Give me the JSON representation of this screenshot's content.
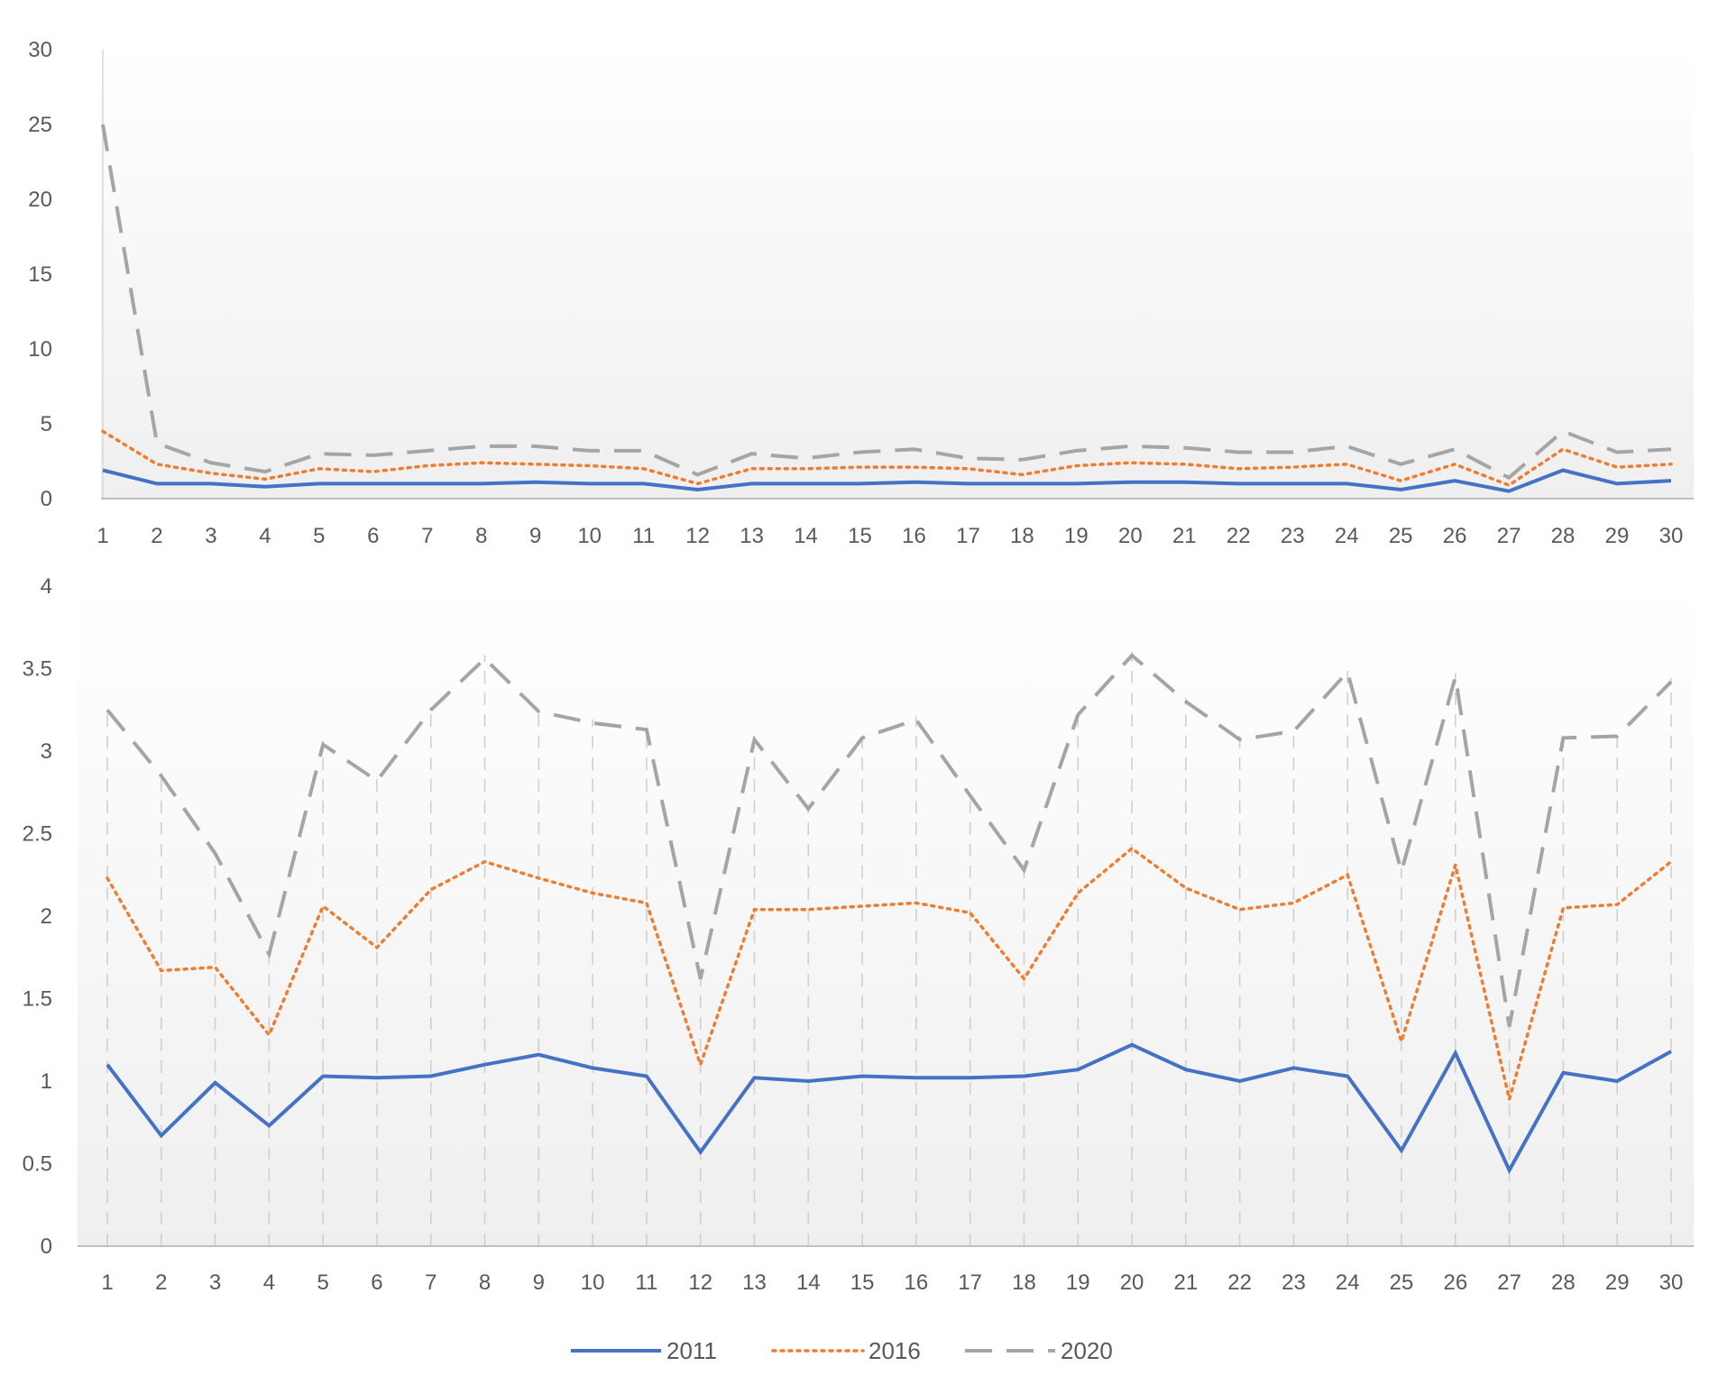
{
  "chart_data": [
    {
      "type": "line",
      "title": "",
      "xlabel": "",
      "ylabel": "",
      "categories": [
        "1",
        "2",
        "3",
        "4",
        "5",
        "6",
        "7",
        "8",
        "9",
        "10",
        "11",
        "12",
        "13",
        "14",
        "15",
        "16",
        "17",
        "18",
        "19",
        "20",
        "21",
        "22",
        "23",
        "24",
        "25",
        "26",
        "27",
        "28",
        "29",
        "30"
      ],
      "yticks": [
        "0",
        "5",
        "10",
        "15",
        "20",
        "25",
        "30"
      ],
      "ylim": [
        0,
        30
      ],
      "grid": false,
      "series": [
        {
          "name": "2011",
          "color": "#4472C4",
          "style": "solid",
          "values": [
            1.9,
            1.0,
            1.0,
            0.8,
            1.0,
            1.0,
            1.0,
            1.0,
            1.1,
            1.0,
            1.0,
            0.6,
            1.0,
            1.0,
            1.0,
            1.1,
            1.0,
            1.0,
            1.0,
            1.1,
            1.1,
            1.0,
            1.0,
            1.0,
            0.6,
            1.2,
            0.5,
            1.9,
            1.0,
            1.2
          ]
        },
        {
          "name": "2016",
          "color": "#ED7D31",
          "style": "dotted",
          "values": [
            4.5,
            2.3,
            1.7,
            1.3,
            2.0,
            1.8,
            2.2,
            2.4,
            2.3,
            2.2,
            2.0,
            1.0,
            2.0,
            2.0,
            2.1,
            2.1,
            2.0,
            1.6,
            2.2,
            2.4,
            2.3,
            2.0,
            2.1,
            2.3,
            1.2,
            2.3,
            0.9,
            3.3,
            2.1,
            2.3
          ]
        },
        {
          "name": "2020",
          "color": "#A5A5A5",
          "style": "dashed",
          "values": [
            25.0,
            3.7,
            2.4,
            1.8,
            3.0,
            2.9,
            3.2,
            3.5,
            3.5,
            3.2,
            3.2,
            1.6,
            3.0,
            2.7,
            3.1,
            3.3,
            2.7,
            2.6,
            3.2,
            3.5,
            3.4,
            3.1,
            3.1,
            3.5,
            2.3,
            3.3,
            1.4,
            4.5,
            3.1,
            3.3
          ]
        }
      ]
    },
    {
      "type": "line",
      "title": "",
      "xlabel": "",
      "ylabel": "",
      "categories": [
        "1",
        "2",
        "3",
        "4",
        "5",
        "6",
        "7",
        "8",
        "9",
        "10",
        "11",
        "12",
        "13",
        "14",
        "15",
        "16",
        "17",
        "18",
        "19",
        "20",
        "21",
        "22",
        "23",
        "24",
        "25",
        "26",
        "27",
        "28",
        "29",
        "30"
      ],
      "yticks": [
        "0",
        "0.5",
        "1",
        "1.5",
        "2",
        "2.5",
        "3",
        "3.5",
        "4"
      ],
      "ylim": [
        0,
        4
      ],
      "grid": true,
      "series": [
        {
          "name": "2011",
          "color": "#4472C4",
          "style": "solid",
          "values": [
            1.1,
            0.67,
            0.99,
            0.73,
            1.03,
            1.02,
            1.03,
            1.1,
            1.16,
            1.08,
            1.03,
            0.57,
            1.02,
            1.0,
            1.03,
            1.02,
            1.02,
            1.03,
            1.07,
            1.22,
            1.07,
            1.0,
            1.08,
            1.03,
            0.58,
            1.17,
            0.46,
            1.05,
            1.0,
            1.18
          ]
        },
        {
          "name": "2016",
          "color": "#ED7D31",
          "style": "dotted",
          "values": [
            2.23,
            1.67,
            1.69,
            1.28,
            2.06,
            1.81,
            2.16,
            2.33,
            2.23,
            2.14,
            2.08,
            1.1,
            2.04,
            2.04,
            2.06,
            2.08,
            2.02,
            1.62,
            2.14,
            2.41,
            2.17,
            2.04,
            2.08,
            2.25,
            1.24,
            2.31,
            0.89,
            2.05,
            2.07,
            2.33
          ]
        },
        {
          "name": "2020",
          "color": "#A5A5A5",
          "style": "dashed",
          "values": [
            3.25,
            2.85,
            2.38,
            1.77,
            3.04,
            2.82,
            3.25,
            3.56,
            3.24,
            3.17,
            3.13,
            1.62,
            3.07,
            2.65,
            3.08,
            3.19,
            2.73,
            2.28,
            3.22,
            3.58,
            3.3,
            3.07,
            3.12,
            3.48,
            2.27,
            3.45,
            1.33,
            3.08,
            3.09,
            3.42
          ]
        }
      ]
    }
  ],
  "legend": {
    "position": "bottom",
    "items": [
      {
        "label": "2011",
        "color": "#4472C4",
        "style": "solid"
      },
      {
        "label": "2016",
        "color": "#ED7D31",
        "style": "dotted"
      },
      {
        "label": "2020",
        "color": "#A5A5A5",
        "style": "dashed"
      }
    ]
  }
}
